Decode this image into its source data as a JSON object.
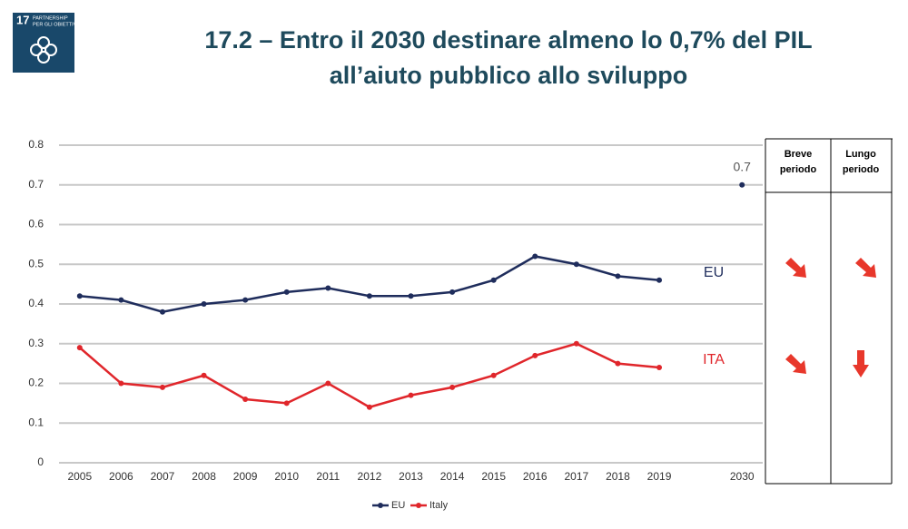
{
  "logo": {
    "number": "17",
    "lines": [
      "PARTNERSHIP",
      "PER GLI OBIETTIVI"
    ]
  },
  "chart_data": {
    "type": "line",
    "title": [
      "17.2 – Entro il 2030 destinare almeno lo 0,7% del PIL",
      "all’aiuto pubblico allo sviluppo"
    ],
    "categories": [
      "2005",
      "2006",
      "2007",
      "2008",
      "2009",
      "2010",
      "2011",
      "2012",
      "2013",
      "2014",
      "2015",
      "2016",
      "2017",
      "2018",
      "2019",
      null,
      "2030"
    ],
    "series": [
      {
        "name": "EU",
        "label": "EU",
        "color": "#1f2d5c",
        "values": [
          0.42,
          0.41,
          0.38,
          0.4,
          0.41,
          0.43,
          0.44,
          0.42,
          0.42,
          0.43,
          0.46,
          0.52,
          0.5,
          0.47,
          0.46,
          null,
          null
        ]
      },
      {
        "name": "Italy",
        "label": "ITA",
        "color": "#e0262b",
        "values": [
          0.29,
          0.2,
          0.19,
          0.22,
          0.16,
          0.15,
          0.2,
          0.14,
          0.17,
          0.19,
          0.22,
          0.27,
          0.3,
          0.25,
          0.24,
          null,
          null
        ]
      }
    ],
    "target": {
      "value": 0.7,
      "color": "#1f2d5c"
    },
    "ylim": [
      0,
      0.8
    ],
    "yticks": [
      0,
      0.1,
      0.2,
      0.3,
      0.4,
      0.5,
      0.6,
      0.7,
      0.8
    ],
    "grid": true,
    "legend": "bottom"
  },
  "table": {
    "headers": [
      [
        "Breve",
        "periodo"
      ],
      [
        "Lungo",
        "periodo"
      ]
    ]
  }
}
